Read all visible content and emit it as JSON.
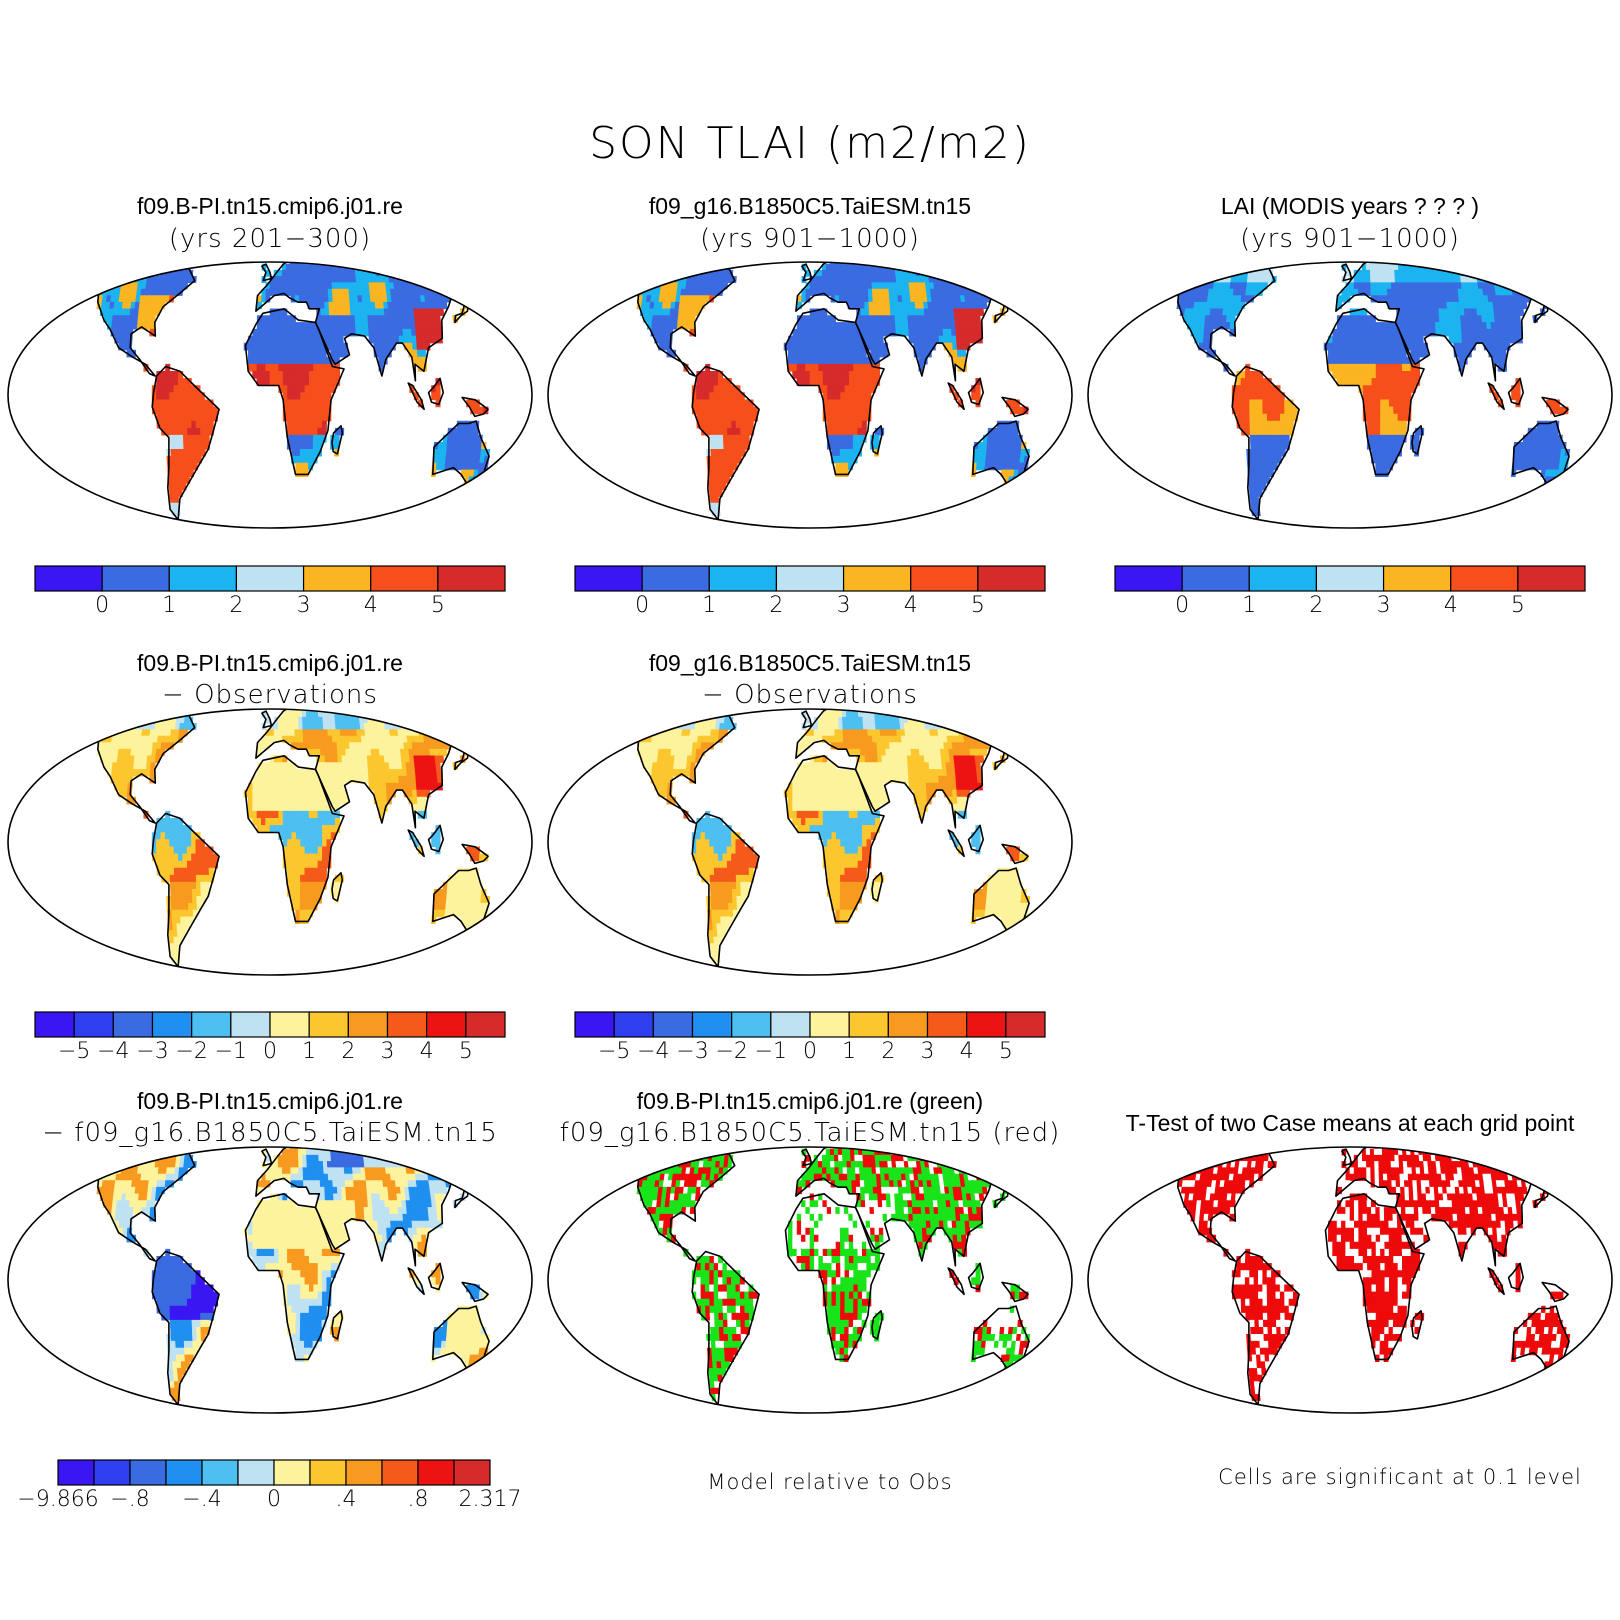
{
  "main_title": "SON TLAI (m2/m2)",
  "colors": {
    "abs_palette": [
      "#3a16f2",
      "#3b6be0",
      "#1cb4f0",
      "#bfe2f2",
      "#fbb521",
      "#f74f1b",
      "#d62b2b"
    ],
    "diff_palette": [
      "#3a16f2",
      "#2f3ff0",
      "#3b6be0",
      "#1f8ff0",
      "#4dbff0",
      "#bfe2f2",
      "#fdf39c",
      "#fcc72e",
      "#f79a1f",
      "#f55a1a",
      "#ee1313",
      "#d62b2b"
    ],
    "green": "#19e319",
    "red": "#ee0a0a"
  },
  "panels": [
    {
      "id": "p1",
      "title": "f09.B-PI.tn15.cmip6.j01.re",
      "subtitle": "(yrs 201−300)",
      "colorbar": "abs"
    },
    {
      "id": "p2",
      "title": "f09_g16.B1850C5.TaiESM.tn15",
      "subtitle": "(yrs 901−1000)",
      "colorbar": "abs"
    },
    {
      "id": "p3",
      "title": "LAI (MODIS years ? ? ? )",
      "subtitle": "(yrs 901−1000)",
      "colorbar": "abs"
    },
    {
      "id": "p4",
      "title": "f09.B-PI.tn15.cmip6.j01.re",
      "subtitle": "− Observations",
      "colorbar": "diff"
    },
    {
      "id": "p5",
      "title": "f09_g16.B1850C5.TaiESM.tn15",
      "subtitle": "− Observations",
      "colorbar": "diff"
    },
    {
      "id": "p7",
      "title": "f09.B-PI.tn15.cmip6.j01.re",
      "subtitle": "− f09_g16.B1850C5.TaiESM.tn15",
      "colorbar": "diff2"
    },
    {
      "id": "p8",
      "title": "f09.B-PI.tn15.cmip6.j01.re (green)",
      "subtitle": "f09_g16.B1850C5.TaiESM.tn15 (red)",
      "note": "Model relative to Obs"
    },
    {
      "id": "p9",
      "title": "T-Test of two Case means at each grid point",
      "subtitle": "",
      "note": "Cells are significant at 0.1 level"
    }
  ],
  "colorbars": {
    "abs": {
      "labels": [
        "0",
        "1",
        "2",
        "3",
        "4",
        "5"
      ]
    },
    "diff": {
      "labels": [
        "−5",
        "−4",
        "−3",
        "−2",
        "−1",
        "0",
        "1",
        "2",
        "3",
        "4",
        "5"
      ]
    },
    "diff2": {
      "labels": [
        "−9.866",
        "−.8",
        "−.4",
        "0",
        ".4",
        ".8",
        "2.317"
      ]
    }
  }
}
